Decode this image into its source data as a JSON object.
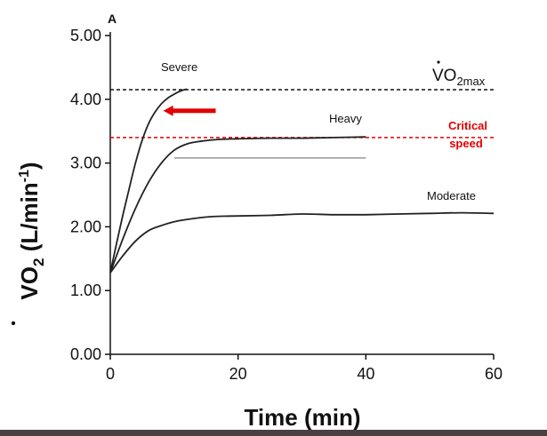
{
  "chart_data": {
    "type": "line",
    "panel_label": "A",
    "xlabel": "Time (min)",
    "ylabel": {
      "base": "VO",
      "sub": "2",
      "units_open": " (L/min",
      "units_sup": "-1",
      "units_close": ")"
    },
    "xlim": [
      0,
      60
    ],
    "ylim": [
      0,
      5
    ],
    "x_ticks": [
      "0",
      "20",
      "40",
      "60"
    ],
    "y_ticks": [
      "0.00",
      "1.00",
      "2.00",
      "3.00",
      "4.00",
      "5.00"
    ],
    "series": [
      {
        "name": "Moderate",
        "color": "#222222",
        "x": [
          0,
          2,
          4,
          6,
          8,
          10,
          13,
          16,
          20,
          25,
          30,
          35,
          40,
          45,
          50,
          55,
          60
        ],
        "y": [
          1.28,
          1.55,
          1.78,
          1.94,
          2.02,
          2.08,
          2.13,
          2.16,
          2.17,
          2.18,
          2.2,
          2.19,
          2.19,
          2.2,
          2.21,
          2.22,
          2.21
        ]
      },
      {
        "name": "Heavy",
        "color": "#222222",
        "x": [
          0,
          2,
          4,
          6,
          8,
          10,
          12,
          14,
          17,
          20,
          25,
          30,
          35,
          40
        ],
        "y": [
          1.28,
          1.82,
          2.3,
          2.7,
          3.0,
          3.2,
          3.3,
          3.34,
          3.37,
          3.38,
          3.39,
          3.39,
          3.4,
          3.41
        ]
      },
      {
        "name": "Severe",
        "color": "#222222",
        "x": [
          0,
          1,
          2,
          3,
          4,
          5,
          6,
          7,
          8,
          9,
          10,
          11,
          12
        ],
        "y": [
          1.28,
          1.75,
          2.2,
          2.62,
          3.02,
          3.36,
          3.62,
          3.8,
          3.93,
          4.02,
          4.08,
          4.13,
          4.16
        ]
      }
    ],
    "reference_lines": [
      {
        "name": "VO2max",
        "y": 4.15,
        "style": "dashed",
        "color": "#111111",
        "label": {
          "base": "VO",
          "sub": "2max"
        }
      },
      {
        "name": "Critical speed",
        "y": 3.4,
        "style": "dashed",
        "color": "#e00000",
        "label_lines": [
          "Critical",
          "speed"
        ]
      },
      {
        "name": "gray-guide",
        "y": 3.08,
        "x_from": 10,
        "x_to": 40,
        "style": "solid",
        "color": "#999999"
      }
    ],
    "annotations": [
      {
        "type": "arrow",
        "color": "#e00000",
        "from_x": 16.5,
        "to_x": 8.3,
        "y": 3.82
      }
    ]
  }
}
